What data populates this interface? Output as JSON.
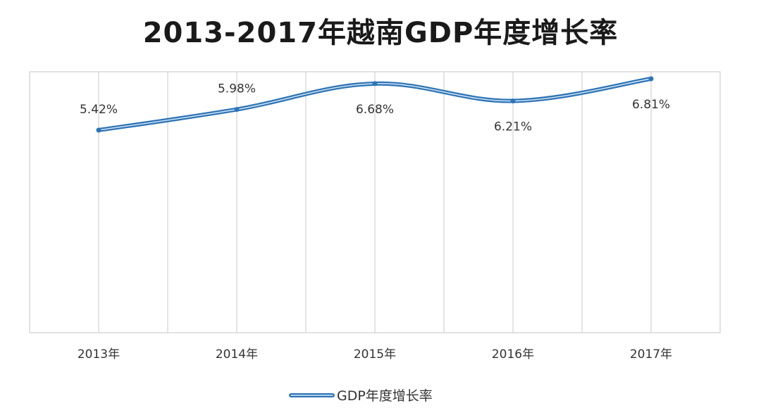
{
  "chart_data": {
    "type": "line",
    "title": "2013-2017年越南GDP年度增长率",
    "categories": [
      "2013年",
      "2014年",
      "2015年",
      "2016年",
      "2017年"
    ],
    "series": [
      {
        "name": "GDP年度增长率",
        "values": [
          5.42,
          5.98,
          6.68,
          6.21,
          6.81
        ],
        "labels": [
          "5.42%",
          "5.98%",
          "6.68%",
          "6.21%",
          "6.81%"
        ],
        "color": "#2e75b6"
      }
    ],
    "xlabel": "",
    "ylabel": "",
    "ylim": [
      0,
      7
    ],
    "grid": "vertical",
    "legend": "bottom",
    "smooth": true
  }
}
